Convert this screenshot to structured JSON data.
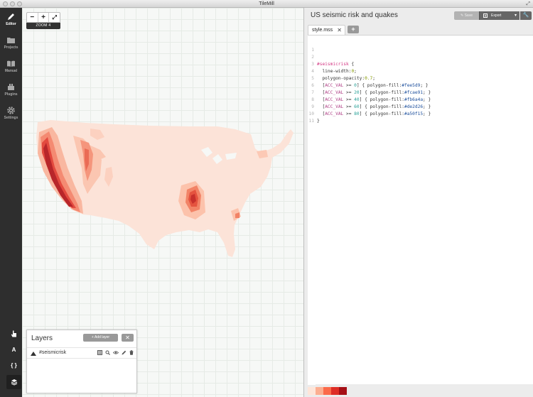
{
  "window": {
    "title": "TileMill"
  },
  "sidebar": {
    "items": [
      {
        "label": "Editor",
        "icon": "pencil-icon",
        "active": true
      },
      {
        "label": "Projects",
        "icon": "folder-icon",
        "active": false
      },
      {
        "label": "Manual",
        "icon": "book-icon",
        "active": false
      },
      {
        "label": "Plugins",
        "icon": "plugins-icon",
        "active": false
      },
      {
        "label": "Settings",
        "icon": "gear-icon",
        "active": false
      }
    ],
    "tools": [
      {
        "label": "",
        "icon": "hand-pointer-icon"
      },
      {
        "label": "A",
        "icon": "font-icon"
      },
      {
        "label": "{ }",
        "icon": "braces-icon"
      },
      {
        "label": "",
        "icon": "layers-icon"
      }
    ]
  },
  "map": {
    "zoom": {
      "minus": "−",
      "plus": "+",
      "fullscreen": "⤢",
      "label": "ZOOM 4"
    }
  },
  "layers": {
    "title": "Layers",
    "add_label": "Add layer",
    "delete_label": "✕",
    "items": [
      {
        "name": "#seismicrisk"
      }
    ]
  },
  "editor": {
    "project_title": "US seismic risk and quakes",
    "save_label": "Save",
    "export_label": "Export",
    "tab_name": "style.mss",
    "tab_close": "✕",
    "add_tab": "+",
    "code": {
      "l3_sel": "#seismicrisk",
      "l3_rest": " {",
      "l4_prop": "  line-width:",
      "l4_val": "0",
      "l4_end": ";",
      "l5_prop": "  polygon-opacity:",
      "l5_val": "0.7",
      "l5_end": ";",
      "rules": [
        {
          "pre": "  [",
          "key": "ACC_VAL",
          "op": " >= ",
          "num": "0",
          "mid": "] { polygon-fill:",
          "hex": "#fee5d9",
          "end": "; }"
        },
        {
          "pre": "  [",
          "key": "ACC_VAL",
          "op": " >= ",
          "num": "20",
          "mid": "] { polygon-fill:",
          "hex": "#fcae91",
          "end": "; }"
        },
        {
          "pre": "  [",
          "key": "ACC_VAL",
          "op": " >= ",
          "num": "40",
          "mid": "] { polygon-fill:",
          "hex": "#fb6a4a",
          "end": "; }"
        },
        {
          "pre": "  [",
          "key": "ACC_VAL",
          "op": " >= ",
          "num": "60",
          "mid": "] { polygon-fill:",
          "hex": "#de2d26",
          "end": "; }"
        },
        {
          "pre": "  [",
          "key": "ACC_VAL",
          "op": " >= ",
          "num": "80",
          "mid": "] { polygon-fill:",
          "hex": "#a50f15",
          "end": "; }"
        }
      ],
      "l11": "}"
    },
    "line_numbers": [
      "1",
      "2",
      "3",
      "4",
      "5",
      "6",
      "7",
      "8",
      "9",
      "10",
      "11"
    ]
  },
  "legend": {
    "colors": [
      "#fee5d9",
      "#fcae91",
      "#fb6a4a",
      "#de2d26",
      "#a50f15"
    ]
  },
  "colors": {
    "sidebar_bg": "#2e2e2e",
    "map_bg": "#f6f8f6",
    "risk_low": "#fce3d8"
  }
}
